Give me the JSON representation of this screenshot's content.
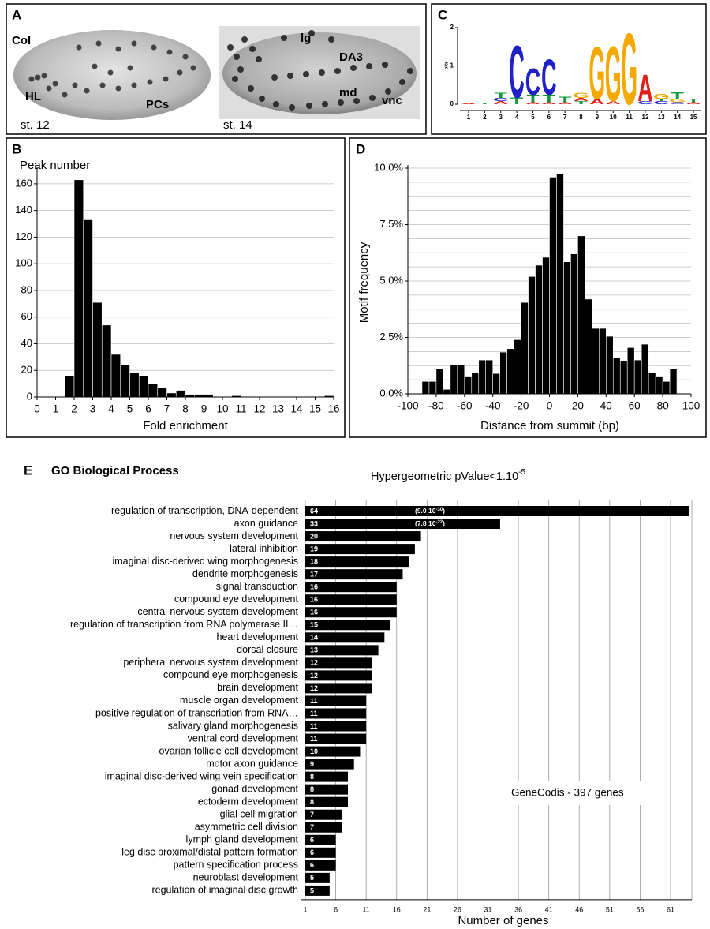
{
  "panel_a": {
    "letter": "A",
    "texts": [
      "Col",
      "HL",
      "PCs",
      "st. 12",
      "lg",
      "DA3",
      "md",
      "vnc",
      "st. 14"
    ]
  },
  "chart_data": [
    {
      "panel": "C",
      "type": "logo",
      "ylabel": "bits",
      "ylim": [
        0,
        2
      ],
      "yticks": [
        0,
        1,
        2
      ],
      "xticks": [
        1,
        2,
        3,
        4,
        5,
        6,
        7,
        8,
        9,
        10,
        11,
        12,
        13,
        14,
        15
      ],
      "colors": {
        "A": "#e0201b",
        "C": "#2020c8",
        "G": "#f5a800",
        "T": "#129a3a"
      },
      "stacks": [
        [
          {
            "letter": "A",
            "bits": 0.03
          }
        ],
        [
          {
            "letter": "T",
            "bits": 0.02
          }
        ],
        [
          {
            "letter": "A",
            "bits": 0.08
          },
          {
            "letter": "C",
            "bits": 0.08
          },
          {
            "letter": "T",
            "bits": 0.14
          }
        ],
        [
          {
            "letter": "T",
            "bits": 0.18
          },
          {
            "letter": "C",
            "bits": 1.4
          }
        ],
        [
          {
            "letter": "A",
            "bits": 0.05
          },
          {
            "letter": "T",
            "bits": 0.2
          },
          {
            "letter": "C",
            "bits": 0.72
          }
        ],
        [
          {
            "letter": "A",
            "bits": 0.05
          },
          {
            "letter": "T",
            "bits": 0.2
          },
          {
            "letter": "C",
            "bits": 0.95
          }
        ],
        [
          {
            "letter": "A",
            "bits": 0.05
          },
          {
            "letter": "T",
            "bits": 0.15
          }
        ],
        [
          {
            "letter": "T",
            "bits": 0.08
          },
          {
            "letter": "A",
            "bits": 0.08
          },
          {
            "letter": "G",
            "bits": 0.14
          }
        ],
        [
          {
            "letter": "A",
            "bits": 0.14
          },
          {
            "letter": "G",
            "bits": 1.4
          }
        ],
        [
          {
            "letter": "A",
            "bits": 0.08
          },
          {
            "letter": "G",
            "bits": 1.48
          }
        ],
        [
          {
            "letter": "G",
            "bits": 1.92
          }
        ],
        [
          {
            "letter": "C",
            "bits": 0.08
          },
          {
            "letter": "A",
            "bits": 0.72
          }
        ],
        [
          {
            "letter": "C",
            "bits": 0.08
          },
          {
            "letter": "T",
            "bits": 0.05
          },
          {
            "letter": "G",
            "bits": 0.14
          }
        ],
        [
          {
            "letter": "C",
            "bits": 0.05
          },
          {
            "letter": "G",
            "bits": 0.08
          },
          {
            "letter": "T",
            "bits": 0.18
          }
        ],
        [
          {
            "letter": "A",
            "bits": 0.05
          },
          {
            "letter": "T",
            "bits": 0.1
          }
        ]
      ]
    },
    {
      "panel": "B",
      "type": "histogram",
      "xlabel": "Fold enrichment",
      "ylabel": "Peak number",
      "color": "#000000",
      "grid": true,
      "bins": [
        1.5,
        2,
        2.5,
        3,
        3.5,
        4,
        4.5,
        5,
        5.5,
        6,
        6.5,
        7,
        7.5,
        8,
        8.5,
        9,
        9.5,
        10,
        10.5,
        11,
        11.5,
        12,
        12.5,
        13,
        13.5,
        14,
        14.5,
        15,
        15.5,
        16
      ],
      "values": [
        16,
        163,
        133,
        71,
        54,
        32,
        24,
        18,
        16,
        10,
        7,
        3,
        5,
        2,
        2,
        2,
        0,
        0,
        1,
        0,
        0,
        0,
        0,
        0,
        0,
        0,
        0,
        0,
        1
      ],
      "xlim": [
        0,
        16
      ],
      "xticks": [
        0,
        1,
        2,
        3,
        4,
        5,
        6,
        7,
        8,
        9,
        10,
        11,
        12,
        13,
        14,
        15,
        16
      ],
      "ylim": [
        0,
        170
      ],
      "yticks": [
        0,
        20,
        40,
        60,
        80,
        100,
        120,
        140,
        160
      ]
    },
    {
      "panel": "D",
      "type": "histogram",
      "xlabel": "Distance from summit (bp)",
      "ylabel": "Motif frequency",
      "color": "#000000",
      "grid": true,
      "bins": [
        -90,
        -85,
        -80,
        -75,
        -70,
        -65,
        -60,
        -55,
        -50,
        -45,
        -40,
        -35,
        -30,
        -25,
        -20,
        -15,
        -10,
        -5,
        0,
        5,
        10,
        15,
        20,
        25,
        30,
        35,
        40,
        45,
        50,
        55,
        60,
        65,
        70,
        75,
        80,
        85,
        90
      ],
      "values": [
        0.55,
        0.55,
        1.1,
        0.2,
        1.3,
        1.3,
        0.75,
        0.95,
        1.5,
        1.5,
        0.9,
        1.85,
        2.0,
        2.4,
        4.05,
        5.2,
        5.7,
        6.05,
        9.6,
        9.75,
        5.85,
        6.2,
        7.0,
        4.2,
        2.9,
        2.9,
        2.55,
        1.6,
        1.45,
        2.05,
        1.5,
        2.2,
        0.95,
        0.75,
        0.55,
        1.1
      ],
      "xlim": [
        -100,
        100
      ],
      "xticks": [
        -100,
        -80,
        -60,
        -40,
        -20,
        0,
        20,
        40,
        60,
        80,
        100
      ],
      "ylim": [
        0,
        10
      ],
      "yticks": [
        {
          "value": 0,
          "label": "0,0%"
        },
        {
          "value": 2.5,
          "label": "2,5%"
        },
        {
          "value": 5,
          "label": "5,0%"
        },
        {
          "value": 7.5,
          "label": "7,5%"
        },
        {
          "value": 10,
          "label": "10,0%"
        }
      ],
      "minor_yticks": [
        0.625,
        1.25,
        1.875,
        3.125,
        3.75,
        4.375,
        5.625,
        6.25,
        6.875,
        8.125,
        8.75,
        9.375
      ]
    },
    {
      "panel": "E",
      "type": "hbar",
      "title": "GO Biological Process",
      "subtitle": "Hypergeometric pValue<1.10",
      "subtitle_sup": "-5",
      "xlabel": "Number of genes",
      "annotation": "GeneCodis - 397 genes",
      "color": "#000000",
      "grid": true,
      "categories": [
        "regulation of transcription, DNA-dependent",
        "axon guidance",
        "nervous system development",
        "lateral inhibition",
        "imaginal disc-derived wing morphogenesis",
        "dendrite morphogenesis",
        "signal transduction",
        "compound eye development",
        "central nervous system development",
        "regulation of transcription from RNA polymerase II…",
        "heart development",
        "dorsal closure",
        "peripheral nervous system development",
        "compound eye morphogenesis",
        "brain development",
        "muscle organ development",
        "positive regulation of transcription from RNA…",
        "salivary gland morphogenesis",
        "ventral cord development",
        "ovarian follicle cell development",
        "motor axon guidance",
        "imaginal disc-derived wing vein specification",
        "gonad development",
        "ectoderm development",
        "glial cell migration",
        "asymmetric cell division",
        "lymph gland development",
        "leg disc proximal/distal pattern formation",
        "pattern specification process",
        "neuroblast development",
        "regulation of imaginal disc growth"
      ],
      "values": [
        64,
        33,
        20,
        19,
        18,
        17,
        16,
        16,
        16,
        15,
        14,
        13,
        12,
        12,
        12,
        11,
        11,
        11,
        11,
        10,
        9,
        8,
        8,
        8,
        7,
        7,
        6,
        6,
        6,
        5,
        5
      ],
      "value_notes": [
        [
          "(9.0 10",
          "-30",
          ")"
        ],
        [
          "(7.8 10",
          "-22",
          ")"
        ],
        null,
        null,
        null,
        null,
        null,
        null,
        null,
        null,
        null,
        null,
        null,
        null,
        null,
        null,
        null,
        null,
        null,
        null,
        null,
        null,
        null,
        null,
        null,
        null,
        null,
        null,
        null,
        null,
        null
      ],
      "xlim": [
        1,
        64.5
      ],
      "xticks": [
        1,
        6,
        11,
        16,
        21,
        26,
        31,
        36,
        41,
        46,
        51,
        56,
        61
      ]
    }
  ]
}
